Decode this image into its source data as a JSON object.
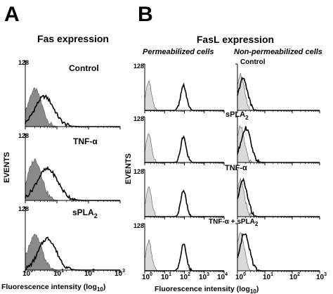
{
  "colors": {
    "line": "#000000",
    "fill_gray": "#8a8a8a",
    "fill_light": "#d9d9d9"
  },
  "panel_a": {
    "letter": "A",
    "title": "Fas expression",
    "ylabel": "EVENTS",
    "xlabel": "Fluorescence intensity (log",
    "xlabel_sub": "10",
    "xlabel_end": ")",
    "ymax_label": "128",
    "xticks": [
      {
        "base": "10",
        "exp": "0"
      },
      {
        "base": "10",
        "exp": "1"
      },
      {
        "base": "10",
        "exp": "2"
      },
      {
        "base": "10",
        "exp": "3"
      }
    ],
    "conditions": [
      {
        "label": "Control",
        "sub": ""
      },
      {
        "label": "TNF-α",
        "sub": ""
      },
      {
        "label": "sPLA",
        "sub": "2"
      }
    ]
  },
  "panel_b": {
    "letter": "B",
    "title": "FasL expression",
    "col_left": "Permeabilized cells",
    "col_right": "Non-permeabilized cells",
    "ylabel": "EVENTS",
    "xlabel": "Fluorescence intensity (log",
    "xlabel_sub": "10",
    "xlabel_end": ")",
    "ymax_label": "128",
    "xticks_left": [
      {
        "base": "10",
        "exp": "0"
      },
      {
        "base": "10",
        "exp": "1"
      },
      {
        "base": "10",
        "exp": "2"
      },
      {
        "base": "10",
        "exp": "3"
      },
      {
        "base": "10",
        "exp": "4"
      }
    ],
    "xticks_right": [
      {
        "base": "10",
        "exp": "0"
      },
      {
        "base": "10",
        "exp": "1"
      },
      {
        "base": "10",
        "exp": "2"
      },
      {
        "base": "10",
        "exp": "3"
      }
    ],
    "conditions": [
      {
        "label": "Control",
        "sub": ""
      },
      {
        "label": "sPLA",
        "sub": "2"
      },
      {
        "label": "TNF-α",
        "sub": ""
      },
      {
        "label": "TNF-α + sPLA",
        "sub": "2"
      }
    ]
  },
  "chart_data": [
    {
      "type": "area",
      "title": "Fas expression",
      "xlabel": "Fluorescence intensity (log10)",
      "ylabel": "EVENTS",
      "x_scale": "log",
      "xlim": [
        1,
        1000
      ],
      "ylim": [
        0,
        128
      ],
      "panels": [
        {
          "label": "Control",
          "series": [
            {
              "style": "filled gray",
              "peak_x": 2,
              "peak_y": 72,
              "spread_decades": 0.22
            },
            {
              "style": "black line",
              "peak_x": 4,
              "peak_y": 58,
              "spread_decades": 0.3
            }
          ]
        },
        {
          "label": "TNF-α",
          "series": [
            {
              "style": "filled gray",
              "peak_x": 2,
              "peak_y": 78,
              "spread_decades": 0.22
            },
            {
              "style": "black line",
              "peak_x": 5,
              "peak_y": 60,
              "spread_decades": 0.33
            }
          ]
        },
        {
          "label": "sPLA2",
          "series": [
            {
              "style": "filled gray",
              "peak_x": 2,
              "peak_y": 70,
              "spread_decades": 0.22
            },
            {
              "style": "black line",
              "peak_x": 5,
              "peak_y": 64,
              "spread_decades": 0.28
            }
          ]
        }
      ]
    },
    {
      "type": "area",
      "title": "FasL expression",
      "subtitle": "Permeabilized cells",
      "xlabel": "Fluorescence intensity (log10)",
      "ylabel": "EVENTS",
      "x_scale": "log",
      "xlim": [
        1,
        10000
      ],
      "ylim": [
        0,
        128
      ],
      "panels": [
        {
          "label": "Control",
          "series": [
            {
              "style": "filled light gray",
              "peak_x": 1.6,
              "peak_y": 80,
              "spread_decades": 0.14
            },
            {
              "style": "black line",
              "peak_x": 90,
              "peak_y": 70,
              "spread_decades": 0.14
            }
          ]
        },
        {
          "label": "sPLA2",
          "series": [
            {
              "style": "filled light gray",
              "peak_x": 1.6,
              "peak_y": 82,
              "spread_decades": 0.14
            },
            {
              "style": "black line",
              "peak_x": 90,
              "peak_y": 72,
              "spread_decades": 0.14
            }
          ]
        },
        {
          "label": "TNF-α",
          "series": [
            {
              "style": "filled light gray",
              "peak_x": 1.6,
              "peak_y": 80,
              "spread_decades": 0.14
            },
            {
              "style": "black line",
              "peak_x": 90,
              "peak_y": 70,
              "spread_decades": 0.14
            }
          ]
        },
        {
          "label": "TNF-α + sPLA2",
          "series": [
            {
              "style": "filled light gray",
              "peak_x": 1.6,
              "peak_y": 82,
              "spread_decades": 0.14
            },
            {
              "style": "black line",
              "peak_x": 90,
              "peak_y": 72,
              "spread_decades": 0.14
            }
          ]
        }
      ]
    },
    {
      "type": "area",
      "title": "FasL expression",
      "subtitle": "Non-permeabilized cells",
      "xlabel": "Fluorescence intensity (log10)",
      "ylabel": "EVENTS",
      "x_scale": "log",
      "xlim": [
        1,
        1000
      ],
      "ylim": [
        0,
        128
      ],
      "panels": [
        {
          "label": "Control",
          "series": [
            {
              "style": "filled light gray",
              "peak_x": 1.3,
              "peak_y": 100,
              "spread_decades": 0.14
            },
            {
              "style": "black line",
              "peak_x": 1.6,
              "peak_y": 88,
              "spread_decades": 0.16
            }
          ]
        },
        {
          "label": "sPLA2",
          "series": [
            {
              "style": "filled light gray",
              "peak_x": 1.3,
              "peak_y": 100,
              "spread_decades": 0.14
            },
            {
              "style": "black line",
              "peak_x": 2,
              "peak_y": 96,
              "spread_decades": 0.18
            }
          ]
        },
        {
          "label": "TNF-α",
          "series": [
            {
              "style": "filled light gray",
              "peak_x": 1.3,
              "peak_y": 100,
              "spread_decades": 0.14
            },
            {
              "style": "black line",
              "peak_x": 1.6,
              "peak_y": 98,
              "spread_decades": 0.16
            }
          ]
        },
        {
          "label": "TNF-α + sPLA2",
          "series": [
            {
              "style": "filled light gray",
              "peak_x": 1.3,
              "peak_y": 100,
              "spread_decades": 0.14
            },
            {
              "style": "black line",
              "peak_x": 1.8,
              "peak_y": 100,
              "spread_decades": 0.18
            }
          ]
        }
      ]
    }
  ]
}
